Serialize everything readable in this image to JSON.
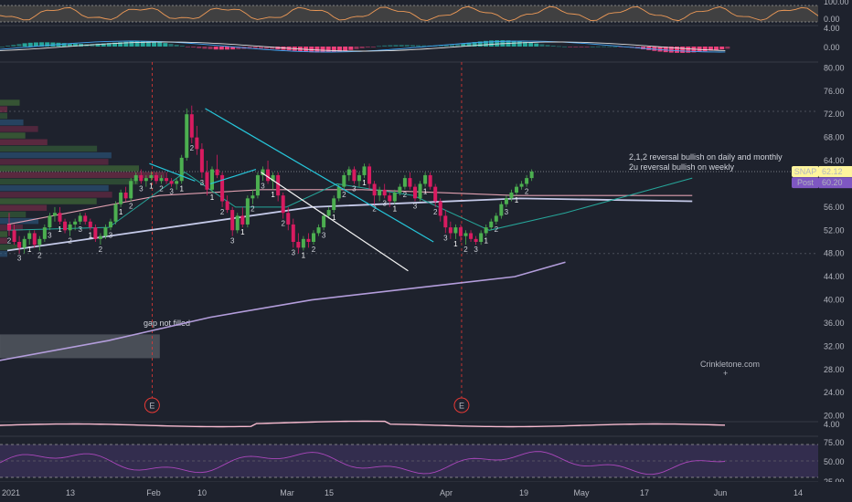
{
  "chart_data": {
    "type": "candlestick",
    "symbol": "SNAP",
    "last_price": "62.12",
    "post_label": "Post",
    "post_price": "60.20",
    "colors": {
      "background": "#1e222d",
      "up": "#4caf50",
      "down": "#d81b60",
      "sma_long": "#b39ddb",
      "ma_short": "#26a69a",
      "ma_mid": "#e0a0b0",
      "trendline": "#26c6da",
      "rsi_band": "#7e57c2",
      "snap_badge": "#fff59d",
      "post_badge": "#7e57c2"
    },
    "price_axis": {
      "range": [
        19,
        81
      ],
      "ticks": [
        "80.00",
        "76.00",
        "72.00",
        "68.00",
        "64.00",
        "60.00",
        "56.00",
        "52.00",
        "48.00",
        "44.00",
        "40.00",
        "36.00",
        "32.00",
        "28.00",
        "24.00",
        "20.00"
      ]
    },
    "x_axis": {
      "labels": [
        "2021",
        "13",
        "Feb",
        "10",
        "Mar",
        "15",
        "Apr",
        "19",
        "May",
        "17",
        "Jun",
        "14"
      ]
    },
    "top_indicator": {
      "ticks": [
        "100.00",
        "0.00"
      ]
    },
    "macd": {
      "ticks": [
        "4.00",
        "0.00"
      ]
    },
    "volatility": {
      "ticks": [
        "4.00"
      ]
    },
    "rsi": {
      "ticks": [
        "75.00",
        "50.00",
        "25.00"
      ]
    },
    "earnings_marker": "E",
    "annotations": {
      "gap": "gap not filled",
      "reversal_1": "2,1,2 reversal bullish on daily and monthly",
      "reversal_2": "2u reversal bullish on weekly",
      "watermark": "Crinkletone.com"
    },
    "candles": [
      [
        53,
        55,
        51,
        52
      ],
      [
        52,
        53,
        49.5,
        50
      ],
      [
        50,
        51,
        48,
        49
      ],
      [
        49,
        51,
        48,
        50.5
      ],
      [
        50.5,
        52,
        49.5,
        51.5
      ],
      [
        51.5,
        52,
        49,
        49.5
      ],
      [
        49.5,
        51,
        48.5,
        50.5
      ],
      [
        50.5,
        53,
        50,
        52.5
      ],
      [
        52.5,
        55,
        52,
        54.5
      ],
      [
        54.5,
        56,
        53.5,
        55
      ],
      [
        55,
        56,
        53,
        53.5
      ],
      [
        53.5,
        54,
        51.5,
        52
      ],
      [
        52,
        53.5,
        51,
        53
      ],
      [
        53,
        54,
        52,
        53.5
      ],
      [
        53.5,
        55,
        53,
        54.5
      ],
      [
        54.5,
        55,
        53,
        53.5
      ],
      [
        53.5,
        54,
        52,
        52.5
      ],
      [
        52.5,
        53,
        50,
        50.5
      ],
      [
        50.5,
        51.5,
        49.5,
        51
      ],
      [
        51,
        53,
        50.5,
        52.5
      ],
      [
        52.5,
        54,
        52,
        53.5
      ],
      [
        53.5,
        57,
        53,
        56.5
      ],
      [
        56.5,
        59,
        56,
        58.5
      ],
      [
        58.5,
        59.5,
        57,
        57.5
      ],
      [
        57.5,
        61,
        57,
        60.5
      ],
      [
        60.5,
        62,
        60,
        61.5
      ],
      [
        61.5,
        62.5,
        60,
        60.5
      ],
      [
        60.5,
        61.5,
        59.5,
        61
      ],
      [
        61,
        62,
        60.5,
        61.5
      ],
      [
        61.5,
        62,
        60,
        60.5
      ],
      [
        60.5,
        61.5,
        60,
        61
      ],
      [
        61,
        62,
        60,
        60.5
      ],
      [
        60.5,
        61,
        59.5,
        60
      ],
      [
        60,
        61,
        59,
        60.5
      ],
      [
        60.5,
        65,
        60,
        64.5
      ],
      [
        64.5,
        73,
        64,
        72
      ],
      [
        72,
        73.5,
        67,
        68
      ],
      [
        68,
        70,
        65,
        66
      ],
      [
        66,
        67,
        61,
        62
      ],
      [
        62,
        64,
        58,
        59
      ],
      [
        59,
        63,
        58.5,
        62.5
      ],
      [
        62.5,
        65,
        61,
        61.5
      ],
      [
        61.5,
        62,
        56,
        57
      ],
      [
        57,
        58,
        55,
        55.5
      ],
      [
        55.5,
        56,
        51,
        52
      ],
      [
        52,
        55,
        51.5,
        54.5
      ],
      [
        54.5,
        56,
        52.5,
        53
      ],
      [
        53,
        58,
        52.5,
        57.5
      ],
      [
        57.5,
        59,
        56.5,
        58
      ],
      [
        58,
        62,
        57.5,
        61.5
      ],
      [
        61.5,
        63,
        60.5,
        62.5
      ],
      [
        62.5,
        64,
        60,
        60.5
      ],
      [
        60.5,
        62,
        59,
        61.5
      ],
      [
        61.5,
        62,
        57,
        58
      ],
      [
        58,
        58.5,
        54,
        55
      ],
      [
        55,
        56,
        52,
        53
      ],
      [
        53,
        54,
        49,
        50
      ],
      [
        50,
        51.5,
        48,
        49
      ],
      [
        49,
        51,
        48.5,
        50.5
      ],
      [
        50.5,
        51.5,
        49,
        50
      ],
      [
        50,
        52,
        49.5,
        51.5
      ],
      [
        51.5,
        53,
        51,
        52.5
      ],
      [
        52.5,
        55,
        52,
        54.5
      ],
      [
        54.5,
        56,
        54,
        55.5
      ],
      [
        55.5,
        58,
        55,
        57.5
      ],
      [
        57.5,
        60,
        57,
        59.5
      ],
      [
        59.5,
        62,
        59,
        61.5
      ],
      [
        61.5,
        63,
        60.5,
        62.5
      ],
      [
        62.5,
        63,
        60,
        60.5
      ],
      [
        60.5,
        62,
        59.5,
        61.5
      ],
      [
        61.5,
        63.5,
        61,
        63
      ],
      [
        63,
        63.5,
        59,
        60
      ],
      [
        60,
        60.5,
        56.5,
        58
      ],
      [
        58,
        59.5,
        57,
        59
      ],
      [
        59,
        60,
        57.5,
        58
      ],
      [
        58,
        58.5,
        56,
        57
      ],
      [
        57,
        59,
        56.5,
        58.5
      ],
      [
        58.5,
        60,
        58,
        59.5
      ],
      [
        59.5,
        61.5,
        59,
        61
      ],
      [
        61,
        62,
        59,
        59.5
      ],
      [
        59.5,
        60,
        57,
        57.5
      ],
      [
        57.5,
        60.5,
        57,
        60
      ],
      [
        60,
        62,
        59.5,
        61.5
      ],
      [
        61.5,
        62,
        59,
        59.5
      ],
      [
        59.5,
        60,
        56,
        57
      ],
      [
        57,
        57.5,
        53.5,
        54.5
      ],
      [
        54.5,
        55.5,
        51.5,
        52.5
      ],
      [
        52.5,
        53.5,
        50.5,
        51.5
      ],
      [
        51.5,
        53,
        50.5,
        52.5
      ],
      [
        52.5,
        53,
        50,
        51
      ],
      [
        51,
        52,
        49.5,
        51.5
      ],
      [
        51.5,
        52,
        50,
        50.5
      ],
      [
        50.5,
        51,
        49.5,
        50
      ],
      [
        50,
        52,
        49.5,
        51.5
      ],
      [
        51.5,
        53,
        51,
        52.5
      ],
      [
        52.5,
        54,
        52,
        53.5
      ],
      [
        53.5,
        55,
        53,
        54.5
      ],
      [
        54.5,
        57,
        54,
        56.5
      ],
      [
        56.5,
        58,
        56,
        57.5
      ],
      [
        57.5,
        59,
        57,
        58.5
      ],
      [
        58.5,
        60,
        58,
        59.5
      ],
      [
        59.5,
        60.5,
        59,
        60
      ],
      [
        60,
        61.5,
        59.5,
        61
      ],
      [
        61,
        62.5,
        60.5,
        62.12
      ]
    ],
    "sma_long": [
      [
        0,
        48.5
      ],
      [
        60,
        56
      ],
      [
        101,
        57.5
      ],
      [
        135,
        57
      ]
    ],
    "ma_short": [
      [
        0,
        52
      ],
      [
        20,
        52.5
      ],
      [
        35,
        62
      ],
      [
        45,
        56
      ],
      [
        55,
        56
      ],
      [
        65,
        60
      ],
      [
        80,
        58
      ],
      [
        95,
        52
      ],
      [
        110,
        55
      ],
      [
        135,
        61
      ]
    ],
    "ma_mid": [
      [
        0,
        53
      ],
      [
        30,
        58
      ],
      [
        50,
        59
      ],
      [
        70,
        59
      ],
      [
        100,
        58
      ],
      [
        135,
        58
      ]
    ],
    "long_ma_200": [
      [
        -5,
        29
      ],
      [
        20,
        33
      ],
      [
        40,
        37
      ],
      [
        60,
        40
      ],
      [
        80,
        42
      ],
      [
        100,
        44
      ],
      [
        110,
        46.5
      ]
    ],
    "trendlines": [
      [
        [
          39,
          73
        ],
        [
          84,
          50
        ]
      ],
      [
        [
          28,
          63.5
        ],
        [
          37,
          60.5
        ]
      ],
      [
        [
          40,
          60
        ],
        [
          49,
          62.5
        ]
      ],
      [
        [
          50,
          62
        ],
        [
          79,
          45
        ]
      ]
    ],
    "gap_box": [
      [
        -3,
        30
      ],
      [
        30,
        34
      ]
    ],
    "earnings_x": [
      28,
      89
    ]
  }
}
